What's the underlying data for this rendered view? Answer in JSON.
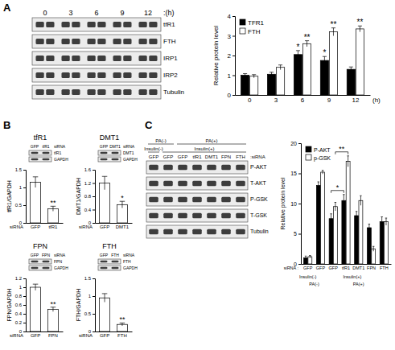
{
  "panel_labels": [
    "A",
    "B",
    "C"
  ],
  "chart_data": [
    {
      "type": "bar",
      "categories": [
        "0",
        "3",
        "6",
        "9",
        "12"
      ],
      "x_label": "(h)",
      "y_label": "Relative protein level",
      "ylim": [
        0,
        4
      ],
      "yticks": [
        0,
        1,
        2,
        3,
        4
      ],
      "legend": "top-left",
      "series": [
        {
          "name": "TFR1",
          "color": "#000000",
          "values": [
            1.0,
            1.05,
            2.05,
            1.75,
            1.3
          ],
          "errors": [
            0.08,
            0.1,
            0.2,
            0.2,
            0.12
          ]
        },
        {
          "name": "FTH",
          "color": "#ffffff",
          "values": [
            0.95,
            1.4,
            2.6,
            3.2,
            3.35
          ],
          "errors": [
            0.08,
            0.12,
            0.15,
            0.2,
            0.15
          ]
        }
      ],
      "annotations": [
        {
          "text": "*",
          "series": 0,
          "index": 2
        },
        {
          "text": "*",
          "series": 0,
          "index": 3
        },
        {
          "text": "**",
          "series": 1,
          "index": 2
        },
        {
          "text": "**",
          "series": 1,
          "index": 3
        },
        {
          "text": "**",
          "series": 1,
          "index": 4
        }
      ]
    },
    {
      "type": "bar",
      "title": "tfR1",
      "categories": [
        "GFP",
        "tfR1"
      ],
      "x_label": "siRNA",
      "y_label": "tfR1/GAPDH",
      "ylim": [
        0,
        1.5
      ],
      "yticks": [
        0,
        0.5,
        1,
        1.5
      ],
      "color": "#ffffff",
      "values": [
        1.15,
        0.4
      ],
      "errors": [
        0.15,
        0.07
      ],
      "annotations": [
        {
          "text": "**",
          "index": 1
        }
      ]
    },
    {
      "type": "bar",
      "title": "DMT1",
      "categories": [
        "GFP",
        "DMT1"
      ],
      "x_label": "siRNA",
      "y_label": "DMT1/GAPDH",
      "ylim": [
        0,
        1.6
      ],
      "yticks": [
        0,
        0.4,
        0.8,
        1.2,
        1.6
      ],
      "color": "#ffffff",
      "values": [
        1.2,
        0.55
      ],
      "errors": [
        0.2,
        0.1
      ],
      "annotations": [
        {
          "text": "*",
          "index": 1
        }
      ]
    },
    {
      "type": "bar",
      "title": "FPN",
      "categories": [
        "GFP",
        "FPN"
      ],
      "x_label": "siRNA",
      "y_label": "FPN/GAPDH",
      "ylim": [
        0,
        1.2
      ],
      "yticks": [
        0,
        0.2,
        0.4,
        0.6,
        0.8,
        1,
        1.2
      ],
      "color": "#ffffff",
      "values": [
        1.0,
        0.5
      ],
      "errors": [
        0.07,
        0.05
      ],
      "annotations": [
        {
          "text": "**",
          "index": 1
        }
      ]
    },
    {
      "type": "bar",
      "title": "FTH",
      "categories": [
        "GFP",
        "FTH"
      ],
      "x_label": "siRNA",
      "y_label": "FTH/GAPDH",
      "ylim": [
        0,
        1.5
      ],
      "yticks": [
        0,
        0.5,
        1,
        1.5
      ],
      "color": "#ffffff",
      "values": [
        0.95,
        0.2
      ],
      "errors": [
        0.12,
        0.04
      ],
      "annotations": [
        {
          "text": "**",
          "index": 1
        }
      ]
    },
    {
      "type": "bar",
      "categories": [
        "GFP",
        "GFP",
        "GFP",
        "tfR1",
        "DMT1",
        "FPN",
        "FTH"
      ],
      "x_label": "siRNA :",
      "y_label": "Relative protein level",
      "ylim": [
        0,
        20
      ],
      "yticks": [
        0,
        5,
        10,
        15,
        20
      ],
      "legend": "top-left",
      "series": [
        {
          "name": "P-AKT",
          "color": "#000000",
          "values": [
            1.0,
            13.0,
            7.5,
            10.5,
            8.0,
            6.0,
            7.0
          ],
          "errors": [
            0.3,
            0.6,
            0.8,
            1.0,
            0.7,
            0.6,
            0.8
          ]
        },
        {
          "name": "p-GSK",
          "color": "#ffffff",
          "values": [
            1.2,
            15.2,
            9.5,
            17.0,
            10.5,
            2.5,
            7.0
          ],
          "errors": [
            0.2,
            0.3,
            0.7,
            0.9,
            0.8,
            0.4,
            0.6
          ]
        }
      ],
      "annotations": [
        {
          "text": "*",
          "series": 0,
          "from": 2,
          "to": 3
        },
        {
          "text": "**",
          "series": 1,
          "from": 2,
          "to": 3
        }
      ],
      "group_rows": [
        [
          {
            "label": "Insulin(-)",
            "from": 0,
            "to": 0
          },
          {
            "label": "Insulin(+)",
            "from": 1,
            "to": 6
          }
        ],
        [
          {
            "label": "PA(-)",
            "from": 0,
            "to": 1
          },
          {
            "label": "PA(+)",
            "from": 2,
            "to": 6
          }
        ]
      ]
    }
  ],
  "blots": [
    {
      "lanes": [
        "0",
        "3",
        "6",
        "9",
        "12"
      ],
      "lane_unit": ":(h)",
      "rows": [
        "tfR1",
        "FTH",
        "IRP1",
        "IRP2",
        "Tubulin"
      ]
    },
    {
      "lanes": [
        "GFP",
        "tfR1"
      ],
      "lane_unit": "siRNA",
      "rows": [
        "tfR1",
        "GAPDH"
      ]
    },
    {
      "lanes": [
        "GFP",
        "DMT1"
      ],
      "lane_unit": "siRNA",
      "rows": [
        "DMT1",
        "GAPDH"
      ]
    },
    {
      "lanes": [
        "GFP",
        "FPN"
      ],
      "lane_unit": "siRNA",
      "rows": [
        "FPN",
        "GAPDH"
      ]
    },
    {
      "lanes": [
        "GFP",
        "FTH"
      ],
      "lane_unit": "siRNA",
      "rows": [
        "FTH",
        "GAPDH"
      ]
    },
    {
      "header_rows": [
        [
          {
            "label": "PA(-)",
            "from": 0,
            "to": 1
          },
          {
            "label": "PA(+)",
            "from": 2,
            "to": 6
          }
        ],
        [
          {
            "label": "Insulin(-)",
            "from": 0,
            "to": 0
          },
          {
            "label": "Insulin(+)",
            "from": 1,
            "to": 6
          }
        ]
      ],
      "lanes": [
        "GFP",
        "GFP",
        "GFP",
        "tfR1",
        "DMT1",
        "FPN",
        "FTH"
      ],
      "lane_unit": ":siRNA",
      "rows": [
        "P-AKT",
        "T-AKT",
        "P-GSK",
        "T-GSK",
        "Tubulin"
      ]
    }
  ]
}
